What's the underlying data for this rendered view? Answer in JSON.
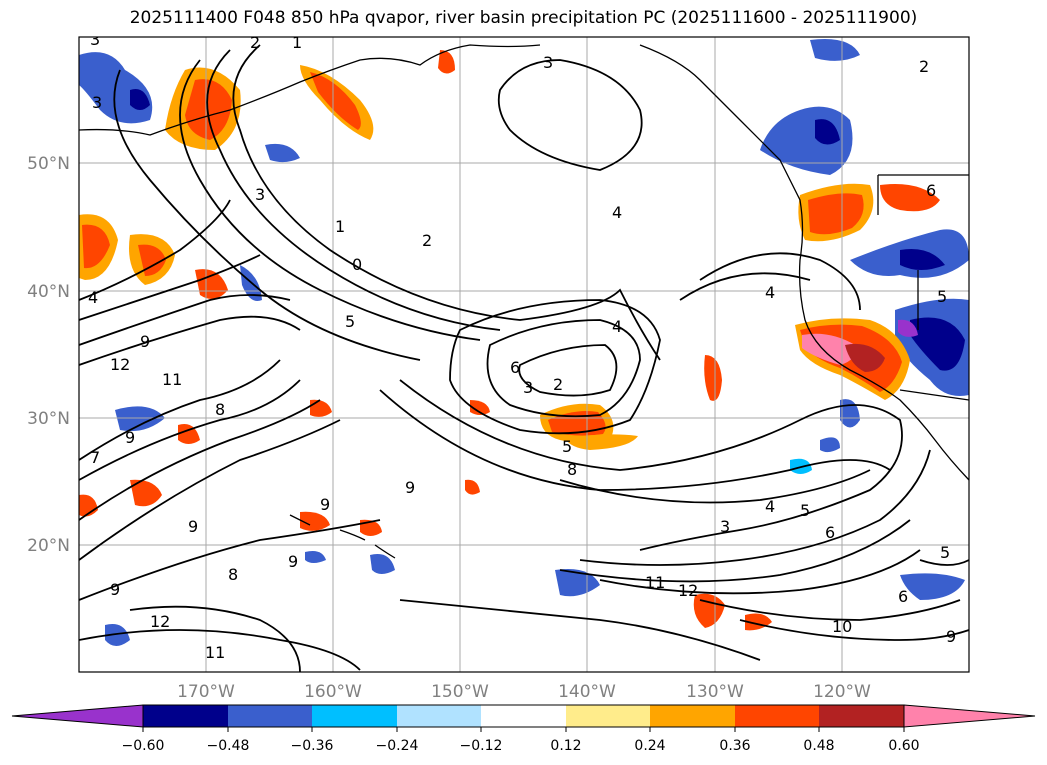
{
  "title": "2025111400 F048 850 hPa qvapor, river basin precipitation PC (2025111600 - 2025111900)",
  "lat_labels": [
    "50°N",
    "40°N",
    "30°N",
    "20°N"
  ],
  "lon_labels": [
    "170°W",
    "160°W",
    "150°W",
    "140°W",
    "130°W",
    "120°W"
  ],
  "colorbar": {
    "colors": [
      "#9932CC",
      "#00008B",
      "#3A5FCD",
      "#00BFFF",
      "#B0E2FF",
      "#FFFFFF",
      "#FFEC8B",
      "#FFA500",
      "#FF4500",
      "#B22222",
      "#FF82AB"
    ],
    "tick_labels": [
      "−0.60",
      "−0.48",
      "−0.36",
      "−0.24",
      "−0.12",
      "0.12",
      "0.24",
      "0.36",
      "0.48",
      "0.60"
    ]
  },
  "contour_labels": [
    "3",
    "2",
    "1",
    "3",
    "3",
    "2",
    "1",
    "0",
    "5",
    "4",
    "4",
    "4",
    "3",
    "4",
    "6",
    "3",
    "2",
    "5",
    "8",
    "9",
    "12",
    "11",
    "9",
    "8",
    "7",
    "9",
    "9",
    "9",
    "3",
    "4",
    "5",
    "6",
    "6",
    "11",
    "12",
    "10",
    "12",
    "11",
    "9",
    "8",
    "9",
    "5",
    "6",
    "9",
    "5",
    "2"
  ]
}
